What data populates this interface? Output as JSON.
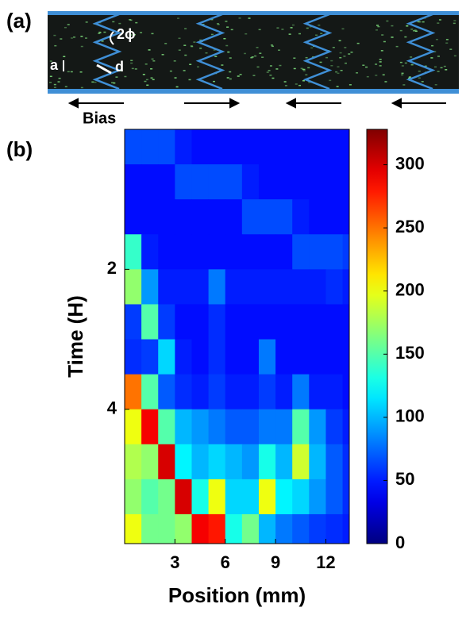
{
  "panel_a": {
    "label": "(a)",
    "angle_label": "2ϕ",
    "a_label": "a",
    "d_label": "d",
    "bias_label": "Bias"
  },
  "chart_data": {
    "type": "heatmap",
    "panel_label": "(b)",
    "xlabel": "Position (mm)",
    "ylabel": "Time (H)",
    "xbins": [
      0,
      1,
      2,
      3,
      4,
      5,
      6,
      7,
      8,
      9,
      10,
      11,
      12,
      13,
      13.4
    ],
    "ybins": [
      0,
      0.5,
      1,
      1.5,
      2,
      2.5,
      3,
      3.5,
      4,
      4.5,
      5,
      5.5,
      5.92
    ],
    "xlim": [
      0,
      13.4
    ],
    "ylim": [
      0,
      5.92
    ],
    "y_reversed": true,
    "xticks": [
      3,
      6,
      9,
      12
    ],
    "yticks": [
      2,
      4
    ],
    "colormap": "jet",
    "clim": [
      0,
      328
    ],
    "cticks": [
      0,
      50,
      100,
      150,
      200,
      250,
      300
    ],
    "z": [
      [
        65,
        65,
        65,
        50,
        45,
        45,
        45,
        45,
        45,
        45,
        45,
        45,
        45,
        45
      ],
      [
        45,
        45,
        45,
        65,
        65,
        65,
        65,
        50,
        45,
        45,
        45,
        45,
        45,
        45
      ],
      [
        45,
        45,
        45,
        45,
        45,
        45,
        45,
        65,
        65,
        65,
        50,
        45,
        45,
        45
      ],
      [
        140,
        50,
        45,
        45,
        45,
        45,
        45,
        45,
        45,
        45,
        65,
        65,
        65,
        60
      ],
      [
        170,
        90,
        50,
        50,
        50,
        80,
        50,
        50,
        50,
        50,
        50,
        50,
        55,
        50
      ],
      [
        60,
        150,
        60,
        45,
        45,
        55,
        45,
        45,
        45,
        45,
        45,
        45,
        45,
        45
      ],
      [
        55,
        60,
        110,
        50,
        45,
        55,
        45,
        45,
        80,
        45,
        45,
        45,
        45,
        45
      ],
      [
        250,
        150,
        70,
        55,
        50,
        60,
        50,
        50,
        60,
        50,
        80,
        50,
        50,
        45
      ],
      [
        200,
        290,
        150,
        100,
        90,
        80,
        70,
        70,
        80,
        80,
        150,
        90,
        60,
        50
      ],
      [
        180,
        170,
        300,
        120,
        100,
        110,
        100,
        90,
        130,
        100,
        190,
        100,
        70,
        55
      ],
      [
        170,
        150,
        160,
        300,
        130,
        200,
        110,
        110,
        200,
        120,
        110,
        90,
        70,
        55
      ],
      [
        200,
        160,
        160,
        170,
        290,
        280,
        130,
        160,
        100,
        80,
        70,
        60,
        55,
        50
      ]
    ]
  }
}
